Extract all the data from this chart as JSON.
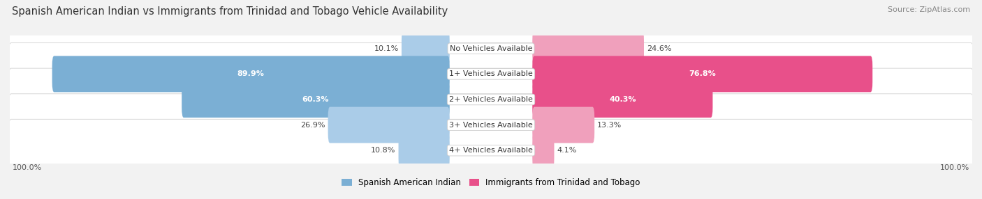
{
  "title": "Spanish American Indian vs Immigrants from Trinidad and Tobago Vehicle Availability",
  "source": "Source: ZipAtlas.com",
  "categories": [
    "No Vehicles Available",
    "1+ Vehicles Available",
    "2+ Vehicles Available",
    "3+ Vehicles Available",
    "4+ Vehicles Available"
  ],
  "left_values": [
    10.1,
    89.9,
    60.3,
    26.9,
    10.8
  ],
  "right_values": [
    24.6,
    76.8,
    40.3,
    13.3,
    4.1
  ],
  "left_color_large": "#7bafd4",
  "left_color_small": "#aacce8",
  "right_color_large": "#e8508a",
  "right_color_small": "#f0a0bc",
  "left_label": "Spanish American Indian",
  "right_label": "Immigrants from Trinidad and Tobago",
  "background_color": "#f2f2f2",
  "row_color": "#e8e8ec",
  "title_fontsize": 10.5,
  "source_fontsize": 8,
  "bar_label_fontsize": 8,
  "cat_label_fontsize": 8,
  "legend_fontsize": 8.5,
  "fig_width": 14.06,
  "fig_height": 2.86
}
